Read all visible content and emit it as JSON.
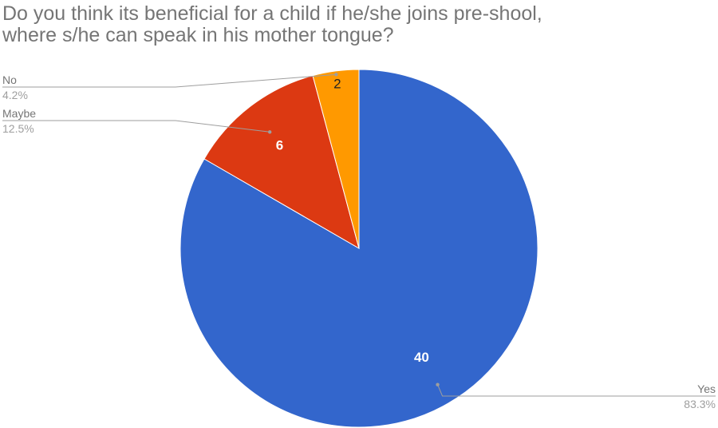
{
  "chart_data": {
    "type": "pie",
    "title_lines": [
      "Do you think its beneficial for a child if he/she joins pre-shool,",
      "where s/he can speak in his mother tongue?"
    ],
    "slices": [
      {
        "label": "Yes",
        "value": 40,
        "percent": "83.3%",
        "color": "#3366cc"
      },
      {
        "label": "Maybe",
        "value": 6,
        "percent": "12.5%",
        "color": "#dc3912"
      },
      {
        "label": "No",
        "value": 2,
        "percent": "4.2%",
        "color": "#ff9900"
      }
    ],
    "value_labels_shown": true,
    "legend": "labeled callouts"
  }
}
